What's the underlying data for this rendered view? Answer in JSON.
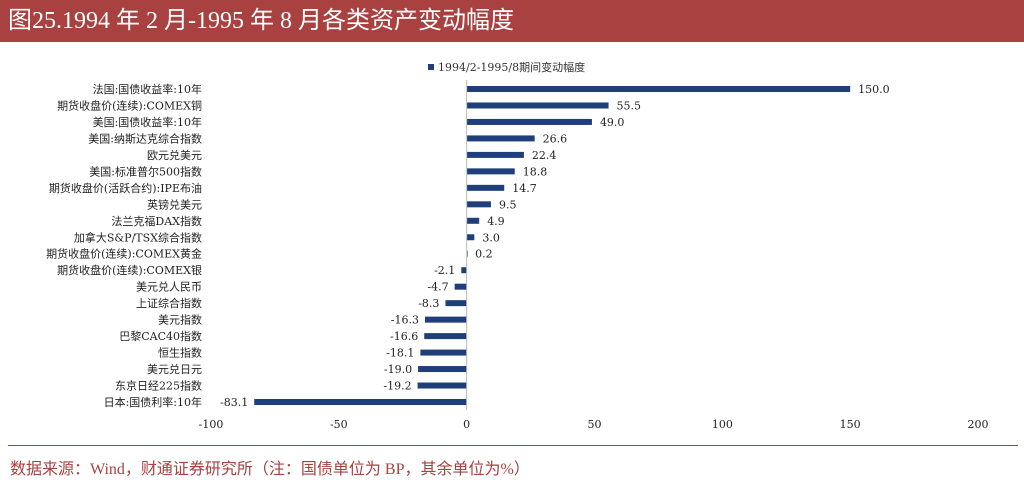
{
  "title": "图25.1994 年 2 月-1995 年 8 月各类资产变动幅度",
  "source": "数据来源：Wind，财通证券研究所（注：国债单位为 BP，其余单位为%）",
  "chart_data": {
    "type": "bar",
    "orientation": "horizontal",
    "legend": {
      "label": "1994/2-1995/8期间变动幅度",
      "position": "top"
    },
    "color": "#1f3f7a",
    "xlim": [
      -100,
      200
    ],
    "xticks": [
      -100,
      -50,
      0,
      50,
      100,
      150,
      200
    ],
    "grid": false,
    "categories": [
      "法国:国债收益率:10年",
      "期货收盘价(连续):COMEX铜",
      "美国:国债收益率:10年",
      "美国:纳斯达克综合指数",
      "欧元兑美元",
      "美国:标准普尔500指数",
      "期货收盘价(活跃合约):IPE布油",
      "英镑兑美元",
      "法兰克福DAX指数",
      "加拿大S&P/TSX综合指数",
      "期货收盘价(连续):COMEX黄金",
      "期货收盘价(连续):COMEX银",
      "美元兑人民币",
      "上证综合指数",
      "美元指数",
      "巴黎CAC40指数",
      "恒生指数",
      "美元兑日元",
      "东京日经225指数",
      "日本:国债利率:10年"
    ],
    "values": [
      150.0,
      55.5,
      49.0,
      26.6,
      22.4,
      18.8,
      14.7,
      9.5,
      4.9,
      3.0,
      0.2,
      -2.1,
      -4.7,
      -8.3,
      -16.3,
      -16.6,
      -18.1,
      -19.0,
      -19.2,
      -83.1
    ]
  }
}
